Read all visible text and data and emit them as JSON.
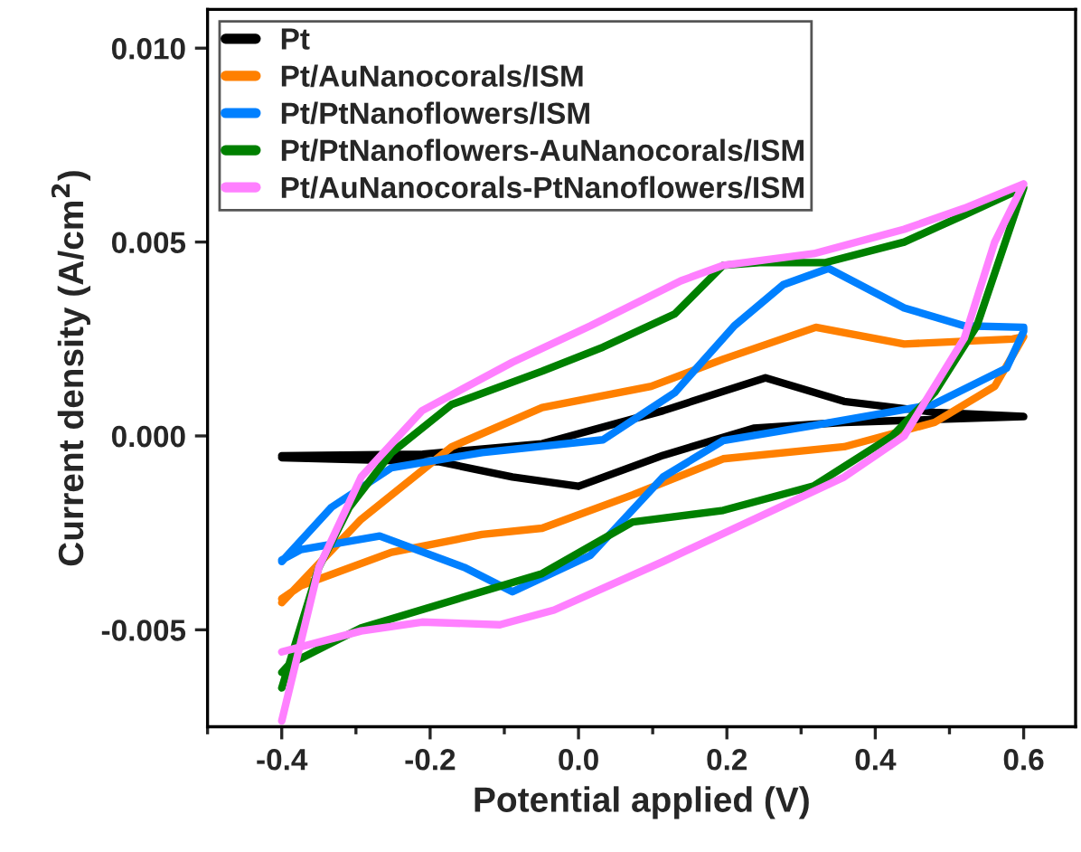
{
  "chart_data": {
    "type": "line",
    "xlabel": "Potential applied (V)",
    "ylabel": "Current density (A/cm$^{2}$)",
    "xlim": [
      -0.5,
      0.67
    ],
    "ylim": [
      -0.0075,
      0.011
    ],
    "xticks": [
      {
        "value": -0.5,
        "label": null
      },
      {
        "value": -0.4,
        "label": "-0.4"
      },
      {
        "value": -0.3,
        "label": null
      },
      {
        "value": -0.2,
        "label": "-0.2"
      },
      {
        "value": -0.1,
        "label": null
      },
      {
        "value": 0.0,
        "label": "0.0"
      },
      {
        "value": 0.1,
        "label": null
      },
      {
        "value": 0.2,
        "label": "0.2"
      },
      {
        "value": 0.3,
        "label": null
      },
      {
        "value": 0.4,
        "label": "0.4"
      },
      {
        "value": 0.5,
        "label": null
      },
      {
        "value": 0.6,
        "label": "0.6"
      }
    ],
    "yticks": [
      {
        "value": -0.005,
        "label": "-0.005"
      },
      {
        "value": 0.0,
        "label": "0.000"
      },
      {
        "value": 0.005,
        "label": "0.005"
      },
      {
        "value": 0.01,
        "label": "0.010"
      }
    ],
    "grid": false,
    "legend": "top left",
    "marker": "none",
    "line_style": "solid",
    "series": [
      {
        "name": "Pt",
        "color": "#000000",
        "x": [
          -0.4,
          -0.21,
          -0.049,
          0.114,
          0.252,
          0.358,
          0.48,
          0.6,
          0.358,
          0.236,
          0.114,
          0.0,
          -0.089,
          -0.187,
          -0.4
        ],
        "values": [
          -0.00051,
          -0.00047,
          -0.0002,
          0.00065,
          0.0015,
          0.00089,
          0.00061,
          0.0005,
          0.00035,
          0.0002,
          -0.0005,
          -0.0013,
          -0.00106,
          -0.00067,
          -0.00056
        ]
      },
      {
        "name": "Pt/AuNanocorals/ISM",
        "color": "#ff8000",
        "x": [
          -0.4,
          -0.293,
          -0.171,
          -0.049,
          0.098,
          0.195,
          0.32,
          0.439,
          0.585,
          0.6,
          0.561,
          0.48,
          0.358,
          0.195,
          0.073,
          -0.049,
          -0.13,
          -0.252,
          -0.374,
          -0.4
        ],
        "values": [
          -0.0043,
          -0.00215,
          -0.00028,
          0.00073,
          0.00128,
          0.00198,
          0.0028,
          0.00237,
          0.0025,
          0.00256,
          0.00128,
          0.00035,
          -0.00028,
          -0.00059,
          -0.00152,
          -0.00238,
          -0.00254,
          -0.003,
          -0.00386,
          -0.0042
        ]
      },
      {
        "name": "Pt/PtNanoflowers/ISM",
        "color": "#0080ff",
        "x": [
          -0.4,
          -0.333,
          -0.252,
          -0.13,
          0.033,
          0.13,
          0.21,
          0.276,
          0.337,
          0.439,
          0.52,
          0.6,
          0.6,
          0.577,
          0.478,
          0.317,
          0.195,
          0.114,
          0.016,
          -0.089,
          -0.154,
          -0.268,
          -0.374,
          -0.4
        ],
        "values": [
          -0.00324,
          -0.00184,
          -0.00082,
          -0.00043,
          -0.0001,
          0.00112,
          0.00284,
          0.0039,
          0.00432,
          0.0033,
          0.00284,
          0.0028,
          0.0027,
          0.00175,
          0.00081,
          0.00027,
          -0.00012,
          -0.00106,
          -0.00308,
          -0.00402,
          -0.00339,
          -0.00258,
          -0.00293,
          -0.0032
        ]
      },
      {
        "name": "Pt/PtNanoflowers-AuNanocorals/ISM",
        "color": "#008000",
        "x": [
          -0.4,
          -0.35,
          -0.309,
          -0.252,
          -0.171,
          -0.049,
          0.033,
          0.13,
          0.195,
          0.244,
          0.333,
          0.439,
          0.52,
          0.6,
          0.537,
          0.48,
          0.423,
          0.317,
          0.195,
          0.073,
          -0.049,
          -0.171,
          -0.293,
          -0.39,
          -0.4
        ],
        "values": [
          -0.0065,
          -0.00339,
          -0.00184,
          -0.00043,
          0.00081,
          0.00167,
          0.00229,
          0.00315,
          0.0044,
          0.00447,
          0.00447,
          0.005,
          0.0057,
          0.0064,
          0.00284,
          0.00112,
          0.0,
          -0.00129,
          -0.00192,
          -0.00222,
          -0.00355,
          -0.00425,
          -0.00495,
          -0.00589,
          -0.0061
        ]
      },
      {
        "name": "Pt/AuNanocorals-PtNanoflowers/ISM",
        "color": "#ff80ff",
        "x": [
          -0.4,
          -0.35,
          -0.293,
          -0.211,
          -0.089,
          0.016,
          0.138,
          0.195,
          0.317,
          0.439,
          0.52,
          0.6,
          0.561,
          0.52,
          0.48,
          0.439,
          0.358,
          0.236,
          0.114,
          -0.033,
          -0.106,
          -0.211,
          -0.293,
          -0.4
        ],
        "values": [
          -0.00735,
          -0.00339,
          -0.00106,
          0.00065,
          0.0019,
          0.00284,
          0.004,
          0.0044,
          0.0047,
          0.00533,
          0.00587,
          0.0065,
          0.005,
          0.00252,
          0.00128,
          0.0,
          -0.00106,
          -0.00215,
          -0.00324,
          -0.00449,
          -0.00487,
          -0.0048,
          -0.00503,
          -0.00557
        ]
      }
    ]
  }
}
